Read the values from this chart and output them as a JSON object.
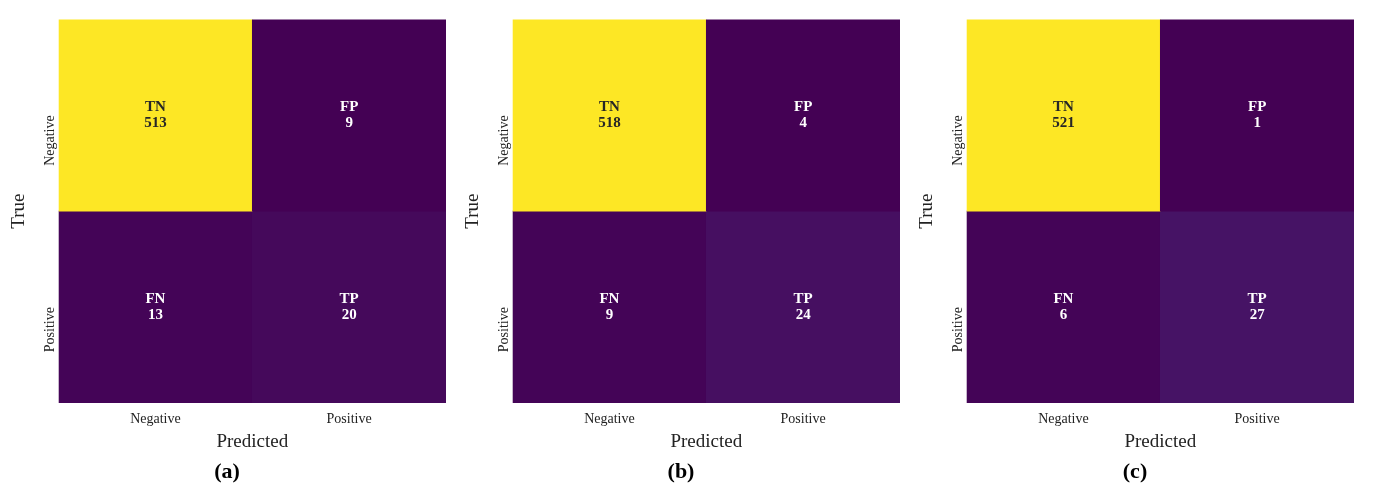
{
  "chart_data": [
    {
      "type": "heatmap",
      "title": "(a)",
      "xlabel": "Predicted",
      "ylabel": "True",
      "categories": [
        "Negative",
        "Positive"
      ],
      "y_categories": [
        "Negative",
        "Positive"
      ],
      "data_labels": true,
      "cells": [
        [
          513,
          9
        ],
        [
          13,
          20
        ]
      ],
      "annotations": [
        "TN",
        "FP",
        "FN",
        "TP"
      ]
    },
    {
      "type": "heatmap",
      "title": "(b)",
      "xlabel": "Predicted",
      "ylabel": "True",
      "categories": [
        "Negative",
        "Positive"
      ],
      "y_categories": [
        "Negative",
        "Positive"
      ],
      "data_labels": true,
      "cells": [
        [
          518,
          4
        ],
        [
          9,
          24
        ]
      ],
      "annotations": [
        "TN",
        "FP",
        "FN",
        "TP"
      ]
    },
    {
      "type": "heatmap",
      "title": "(c)",
      "xlabel": "Predicted",
      "ylabel": "True",
      "categories": [
        "Negative",
        "Positive"
      ],
      "y_categories": [
        "Negative",
        "Positive"
      ],
      "data_labels": true,
      "cells": [
        [
          521,
          1
        ],
        [
          6,
          27
        ]
      ],
      "annotations": [
        "TN",
        "FP",
        "FN",
        "TP"
      ]
    }
  ]
}
